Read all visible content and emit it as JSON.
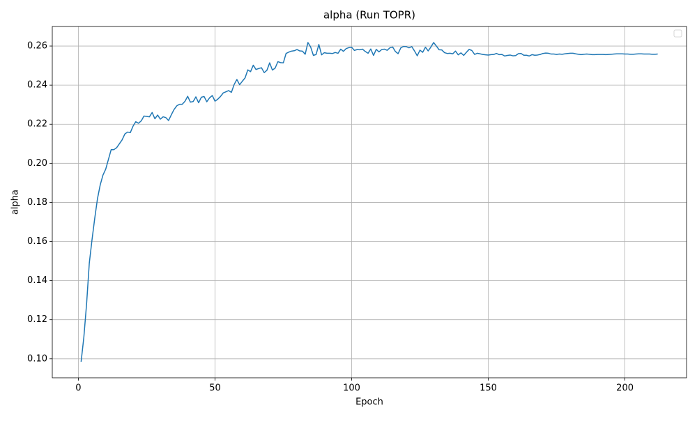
{
  "chart_data": {
    "type": "line",
    "title": "alpha (Run TOPR)",
    "x_label": "Epoch",
    "y_label": "alpha",
    "x": [
      1,
      2,
      3,
      4,
      5,
      6,
      7,
      8,
      9,
      10,
      11,
      12,
      13,
      14,
      15,
      16,
      17,
      18,
      19,
      20,
      21,
      22,
      23,
      24,
      25,
      26,
      27,
      28,
      29,
      30,
      31,
      32,
      33,
      34,
      35,
      36,
      37,
      38,
      39,
      40,
      41,
      42,
      43,
      44,
      45,
      46,
      47,
      48,
      49,
      50,
      51,
      52,
      53,
      54,
      55,
      56,
      57,
      58,
      59,
      60,
      61,
      62,
      63,
      64,
      65,
      66,
      67,
      68,
      69,
      70,
      71,
      72,
      73,
      74,
      75,
      76,
      77,
      78,
      79,
      80,
      81,
      82,
      83,
      84,
      85,
      86,
      87,
      88,
      89,
      90,
      91,
      92,
      93,
      94,
      95,
      96,
      97,
      98,
      99,
      100,
      101,
      102,
      103,
      104,
      105,
      106,
      107,
      108,
      109,
      110,
      111,
      112,
      113,
      114,
      115,
      116,
      117,
      118,
      119,
      120,
      121,
      122,
      123,
      124,
      125,
      126,
      127,
      128,
      129,
      130,
      131,
      132,
      133,
      134,
      135,
      136,
      137,
      138,
      139,
      140,
      141,
      142,
      143,
      144,
      145,
      146,
      147,
      148,
      149,
      150,
      151,
      152,
      153,
      154,
      155,
      156,
      157,
      158,
      159,
      160,
      161,
      162,
      163,
      164,
      165,
      166,
      167,
      168,
      169,
      170,
      171,
      172,
      173,
      174,
      175,
      176,
      177,
      178,
      179,
      180,
      181,
      182,
      183,
      184,
      185,
      186,
      187,
      188,
      189,
      190,
      191,
      192,
      193,
      194,
      195,
      196,
      197,
      198,
      199,
      200,
      201,
      202,
      203,
      204,
      205,
      206,
      207,
      208,
      209,
      210,
      211,
      212
    ],
    "series": [
      {
        "color": "#1f77b4",
        "values": [
          0.0985,
          0.111,
          0.128,
          0.149,
          0.161,
          0.172,
          0.182,
          0.189,
          0.194,
          0.197,
          0.202,
          0.207,
          0.207,
          0.208,
          0.21,
          0.212,
          0.215,
          0.216,
          0.2157,
          0.219,
          0.2213,
          0.2205,
          0.2217,
          0.2242,
          0.224,
          0.2238,
          0.226,
          0.2228,
          0.2247,
          0.2226,
          0.2238,
          0.2234,
          0.2219,
          0.2248,
          0.2275,
          0.2294,
          0.2302,
          0.2302,
          0.2317,
          0.2343,
          0.2313,
          0.2316,
          0.234,
          0.231,
          0.2338,
          0.2342,
          0.2315,
          0.2335,
          0.2347,
          0.2318,
          0.2328,
          0.2342,
          0.236,
          0.2366,
          0.2372,
          0.2363,
          0.2403,
          0.2429,
          0.2402,
          0.242,
          0.2437,
          0.2478,
          0.2469,
          0.2502,
          0.248,
          0.2485,
          0.2489,
          0.2464,
          0.2476,
          0.2514,
          0.2477,
          0.2487,
          0.252,
          0.2515,
          0.2514,
          0.2562,
          0.2569,
          0.2574,
          0.2576,
          0.2582,
          0.2575,
          0.2574,
          0.2558,
          0.2618,
          0.2595,
          0.2552,
          0.2557,
          0.2608,
          0.2555,
          0.2566,
          0.2563,
          0.2563,
          0.2562,
          0.2567,
          0.2563,
          0.2584,
          0.2573,
          0.2587,
          0.2592,
          0.2594,
          0.2578,
          0.2582,
          0.2581,
          0.2584,
          0.2572,
          0.2563,
          0.2585,
          0.2552,
          0.2583,
          0.257,
          0.2582,
          0.2584,
          0.2578,
          0.2591,
          0.2595,
          0.2572,
          0.2561,
          0.2591,
          0.2598,
          0.2597,
          0.2591,
          0.2597,
          0.2575,
          0.255,
          0.2579,
          0.2568,
          0.2594,
          0.2575,
          0.2595,
          0.2618,
          0.26,
          0.2581,
          0.258,
          0.2566,
          0.2562,
          0.2563,
          0.256,
          0.2574,
          0.2555,
          0.2565,
          0.2552,
          0.2568,
          0.2583,
          0.2577,
          0.2557,
          0.2563,
          0.256,
          0.2557,
          0.2555,
          0.2554,
          0.2556,
          0.2557,
          0.2562,
          0.2556,
          0.2557,
          0.2549,
          0.2552,
          0.2554,
          0.255,
          0.2551,
          0.2561,
          0.2562,
          0.2553,
          0.2553,
          0.2549,
          0.2556,
          0.2553,
          0.2554,
          0.2557,
          0.2562,
          0.2564,
          0.2563,
          0.2559,
          0.2559,
          0.2557,
          0.2559,
          0.2558,
          0.256,
          0.2562,
          0.2563,
          0.2563,
          0.256,
          0.2558,
          0.2556,
          0.2558,
          0.2559,
          0.2558,
          0.2556,
          0.2556,
          0.2557,
          0.2557,
          0.2557,
          0.2556,
          0.2557,
          0.2558,
          0.2559,
          0.256,
          0.256,
          0.256,
          0.2559,
          0.2559,
          0.2558,
          0.2558,
          0.2559,
          0.256,
          0.256,
          0.2559,
          0.2559,
          0.2559,
          0.2558,
          0.2558,
          0.2559
        ]
      }
    ],
    "xlim": [
      -9.55,
      222.55
    ],
    "xticks": [
      0,
      50,
      100,
      150,
      200
    ],
    "ylim": [
      0.0903,
      0.27
    ],
    "yticks": [
      {
        "value": 0.1,
        "label": "0.10"
      },
      0.12,
      0.14,
      0.16,
      0.18,
      {
        "value": 0.2,
        "label": "0.20"
      },
      0.22,
      0.24,
      0.26
    ],
    "grid": true,
    "legend": "upper right"
  }
}
